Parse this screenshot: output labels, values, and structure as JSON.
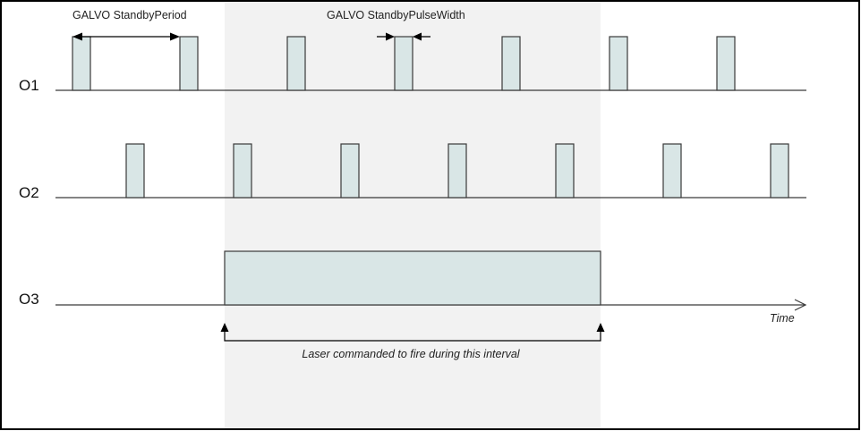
{
  "colors": {
    "background": "#ffffff",
    "border": "#000000",
    "shaded_interval": "#f2f2f2",
    "pulse_fill": "#d9e6e6",
    "pulse_stroke": "#3a3a3a",
    "baseline": "#3a3a3a"
  },
  "channels": [
    {
      "label": "O1",
      "pulse_count": 7
    },
    {
      "label": "O2",
      "pulse_count": 7
    },
    {
      "label": "O3",
      "pulse_count": 1
    }
  ],
  "annotations": {
    "standby_period": "GALVO StandbyPeriod",
    "standby_pulse_width": "GALVO StandbyPulseWidth",
    "time_axis": "Time",
    "laser_interval": "Laser commanded to fire during this interval"
  }
}
